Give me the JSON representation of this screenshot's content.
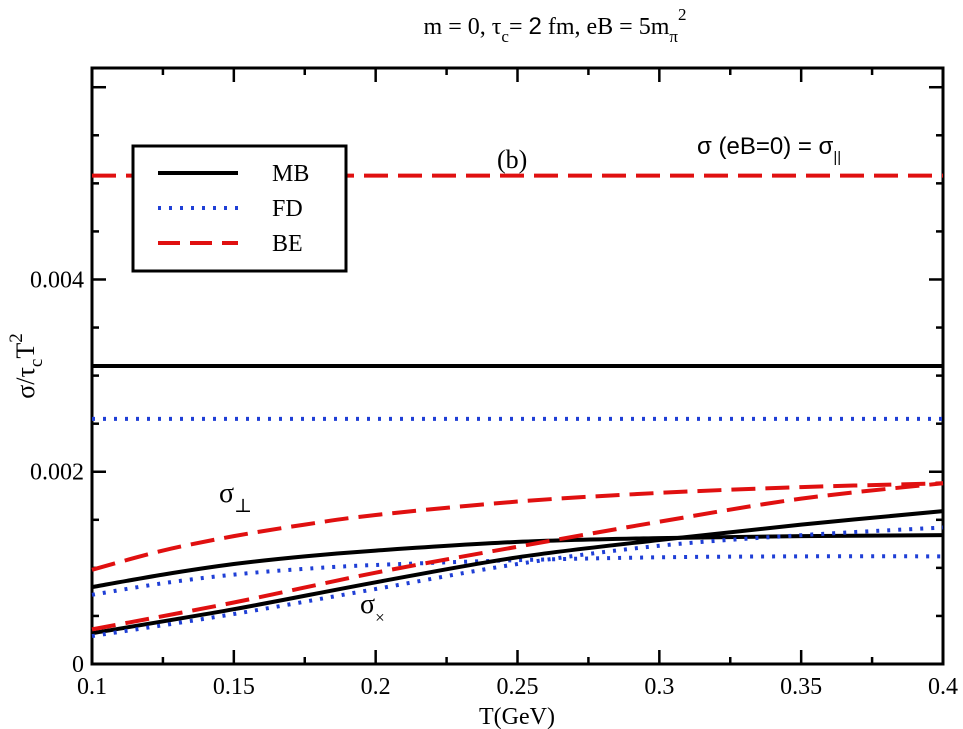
{
  "chart_data": {
    "type": "line",
    "title": {
      "base": "m = 0, τ",
      "sub": "c",
      "mid1": "= ",
      "two": "2",
      "mid2": " fm, eB = 5m",
      "sub2": "π",
      "sup": "2"
    },
    "panel_label": "(b)",
    "xlabel": "T(GeV)",
    "ylabel": {
      "main": "σ/τ",
      "sub": "c",
      "after": "T",
      "sup": "2"
    },
    "xlim": [
      0.1,
      0.4
    ],
    "ylim": [
      0,
      0.0062
    ],
    "x_ticks": [
      "0.1",
      "0.15",
      "0.2",
      "0.25",
      "0.3",
      "0.35",
      "0.4"
    ],
    "y_ticks": [
      "0",
      "0.002",
      "0.004"
    ],
    "legend": [
      {
        "label": "MB",
        "style": "solid",
        "color": "#000000"
      },
      {
        "label": "FD",
        "style": "dotted",
        "color": "#1f3fd6"
      },
      {
        "label": "BE",
        "style": "dashed",
        "color": "#e01010"
      }
    ],
    "annotations": {
      "par_left": "σ (eB=0) = σ",
      "par_sub": "||",
      "perp_main": "σ",
      "perp_sub": "⊥",
      "cross_main": "σ",
      "cross_sub": "×"
    },
    "series": [
      {
        "name": "MB",
        "kind": "parallel",
        "x": [
          0.1,
          0.4
        ],
        "y": [
          0.0031,
          0.0031
        ]
      },
      {
        "name": "FD",
        "kind": "parallel",
        "x": [
          0.1,
          0.4
        ],
        "y": [
          0.00255,
          0.00255
        ]
      },
      {
        "name": "BE",
        "kind": "parallel",
        "x": [
          0.1,
          0.4
        ],
        "y": [
          0.00508,
          0.00508
        ]
      },
      {
        "name": "MB",
        "kind": "perp",
        "x": [
          0.1,
          0.125,
          0.15,
          0.175,
          0.2,
          0.25,
          0.3,
          0.35,
          0.4
        ],
        "y": [
          0.0008,
          0.00093,
          0.00104,
          0.00112,
          0.00118,
          0.00127,
          0.00131,
          0.00133,
          0.00134
        ]
      },
      {
        "name": "FD",
        "kind": "perp",
        "x": [
          0.1,
          0.125,
          0.15,
          0.175,
          0.2,
          0.25,
          0.3,
          0.35,
          0.4
        ],
        "y": [
          0.00072,
          0.00084,
          0.00093,
          0.00099,
          0.00103,
          0.00108,
          0.00111,
          0.00112,
          0.00112
        ]
      },
      {
        "name": "BE",
        "kind": "perp",
        "x": [
          0.1,
          0.125,
          0.15,
          0.175,
          0.2,
          0.25,
          0.3,
          0.35,
          0.4
        ],
        "y": [
          0.00098,
          0.00118,
          0.00133,
          0.00145,
          0.00155,
          0.00169,
          0.00178,
          0.00184,
          0.00188
        ]
      },
      {
        "name": "MB",
        "kind": "cross",
        "x": [
          0.1,
          0.15,
          0.2,
          0.25,
          0.3,
          0.35,
          0.4
        ],
        "y": [
          0.00032,
          0.00057,
          0.00085,
          0.00111,
          0.00129,
          0.00145,
          0.00159
        ]
      },
      {
        "name": "FD",
        "kind": "cross",
        "x": [
          0.1,
          0.15,
          0.2,
          0.25,
          0.3,
          0.35,
          0.4
        ],
        "y": [
          0.00029,
          0.00052,
          0.00078,
          0.00104,
          0.00123,
          0.00134,
          0.00142
        ]
      },
      {
        "name": "BE",
        "kind": "cross",
        "x": [
          0.1,
          0.15,
          0.2,
          0.25,
          0.3,
          0.35,
          0.4
        ],
        "y": [
          0.00036,
          0.00064,
          0.00095,
          0.00122,
          0.00148,
          0.00172,
          0.00188
        ]
      }
    ],
    "grid": false
  }
}
